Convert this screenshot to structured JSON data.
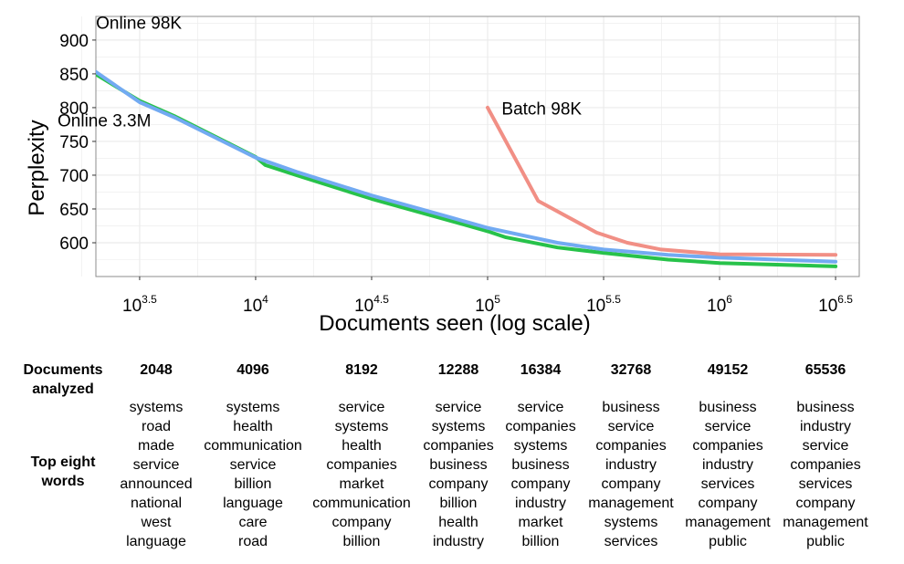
{
  "colors": {
    "online_98k": "#72aaf2",
    "online_3_3m": "#27c24a",
    "batch_98k": "#f18f85",
    "grid": "#ebebeb",
    "border": "#8c8c8c"
  },
  "chart_data": {
    "type": "line",
    "xlabel": "Documents seen (log scale)",
    "ylabel": "Perplexity",
    "x_scale": "log10",
    "xlim": [
      2048,
      4000000
    ],
    "ylim": [
      550,
      935
    ],
    "x_ticks": [
      {
        "value": 3162.28,
        "base": "10",
        "exp": "3.5"
      },
      {
        "value": 10000,
        "base": "10",
        "exp": "4"
      },
      {
        "value": 31622.8,
        "base": "10",
        "exp": "4.5"
      },
      {
        "value": 100000,
        "base": "10",
        "exp": "5"
      },
      {
        "value": 316227.8,
        "base": "10",
        "exp": "5.5"
      },
      {
        "value": 1000000,
        "base": "10",
        "exp": "6"
      },
      {
        "value": 3162277.7,
        "base": "10",
        "exp": "6.5"
      }
    ],
    "y_ticks": [
      600,
      650,
      700,
      750,
      800,
      850,
      900
    ],
    "grid": true,
    "series": [
      {
        "name": "Online 98K",
        "color_key": "online_98k",
        "points": [
          [
            1000,
            927
          ],
          [
            3162,
            808
          ],
          [
            4500,
            785
          ],
          [
            10000,
            726
          ],
          [
            15000,
            705
          ],
          [
            31623,
            670
          ],
          [
            70000,
            637
          ],
          [
            100000,
            622
          ],
          [
            200000,
            600
          ],
          [
            316228,
            590
          ],
          [
            600000,
            582
          ],
          [
            1000000,
            578
          ],
          [
            3162278,
            572
          ]
        ]
      },
      {
        "name": "Online 3.3M",
        "color_key": "online_3_3m",
        "points": [
          [
            1000,
            914
          ],
          [
            3162,
            810
          ],
          [
            4500,
            787
          ],
          [
            10000,
            727
          ],
          [
            11000,
            715
          ],
          [
            15000,
            700
          ],
          [
            31623,
            665
          ],
          [
            70000,
            632
          ],
          [
            100000,
            617
          ],
          [
            120000,
            608
          ],
          [
            200000,
            593
          ],
          [
            316228,
            585
          ],
          [
            600000,
            575
          ],
          [
            1000000,
            570
          ],
          [
            3162278,
            565
          ]
        ]
      },
      {
        "name": "Batch 98K",
        "color_key": "batch_98k",
        "points": [
          [
            100000,
            800
          ],
          [
            165000,
            662
          ],
          [
            295000,
            615
          ],
          [
            400000,
            600
          ],
          [
            560000,
            590
          ],
          [
            1000000,
            583
          ],
          [
            3162278,
            582
          ]
        ]
      }
    ],
    "annotations": [
      {
        "series": "Online 98K",
        "text": "Online 98K",
        "x": 2050,
        "y": 917
      },
      {
        "series": "Online 3.3M",
        "text": "Online 3.3M",
        "x": 1400,
        "y": 772
      },
      {
        "series": "Batch 98K",
        "text": "Batch 98K",
        "x": 115000,
        "y": 790
      }
    ]
  },
  "table": {
    "docs_label_line1": "Documents",
    "docs_label_line2": "analyzed",
    "words_label_line1": "Top eight",
    "words_label_line2": "words",
    "columns": [
      {
        "docs": "2048",
        "words": [
          "systems",
          "road",
          "made",
          "service",
          "announced",
          "national",
          "west",
          "language"
        ]
      },
      {
        "docs": "4096",
        "words": [
          "systems",
          "health",
          "communication",
          "service",
          "billion",
          "language",
          "care",
          "road"
        ]
      },
      {
        "docs": "8192",
        "words": [
          "service",
          "systems",
          "health",
          "companies",
          "market",
          "communication",
          "company",
          "billion"
        ]
      },
      {
        "docs": "12288",
        "words": [
          "service",
          "systems",
          "companies",
          "business",
          "company",
          "billion",
          "health",
          "industry"
        ]
      },
      {
        "docs": "16384",
        "words": [
          "service",
          "companies",
          "systems",
          "business",
          "company",
          "industry",
          "market",
          "billion"
        ]
      },
      {
        "docs": "32768",
        "words": [
          "business",
          "service",
          "companies",
          "industry",
          "company",
          "management",
          "systems",
          "services"
        ]
      },
      {
        "docs": "49152",
        "words": [
          "business",
          "service",
          "companies",
          "industry",
          "services",
          "company",
          "management",
          "public"
        ]
      },
      {
        "docs": "65536",
        "words": [
          "business",
          "industry",
          "service",
          "companies",
          "services",
          "company",
          "management",
          "public"
        ]
      }
    ]
  }
}
